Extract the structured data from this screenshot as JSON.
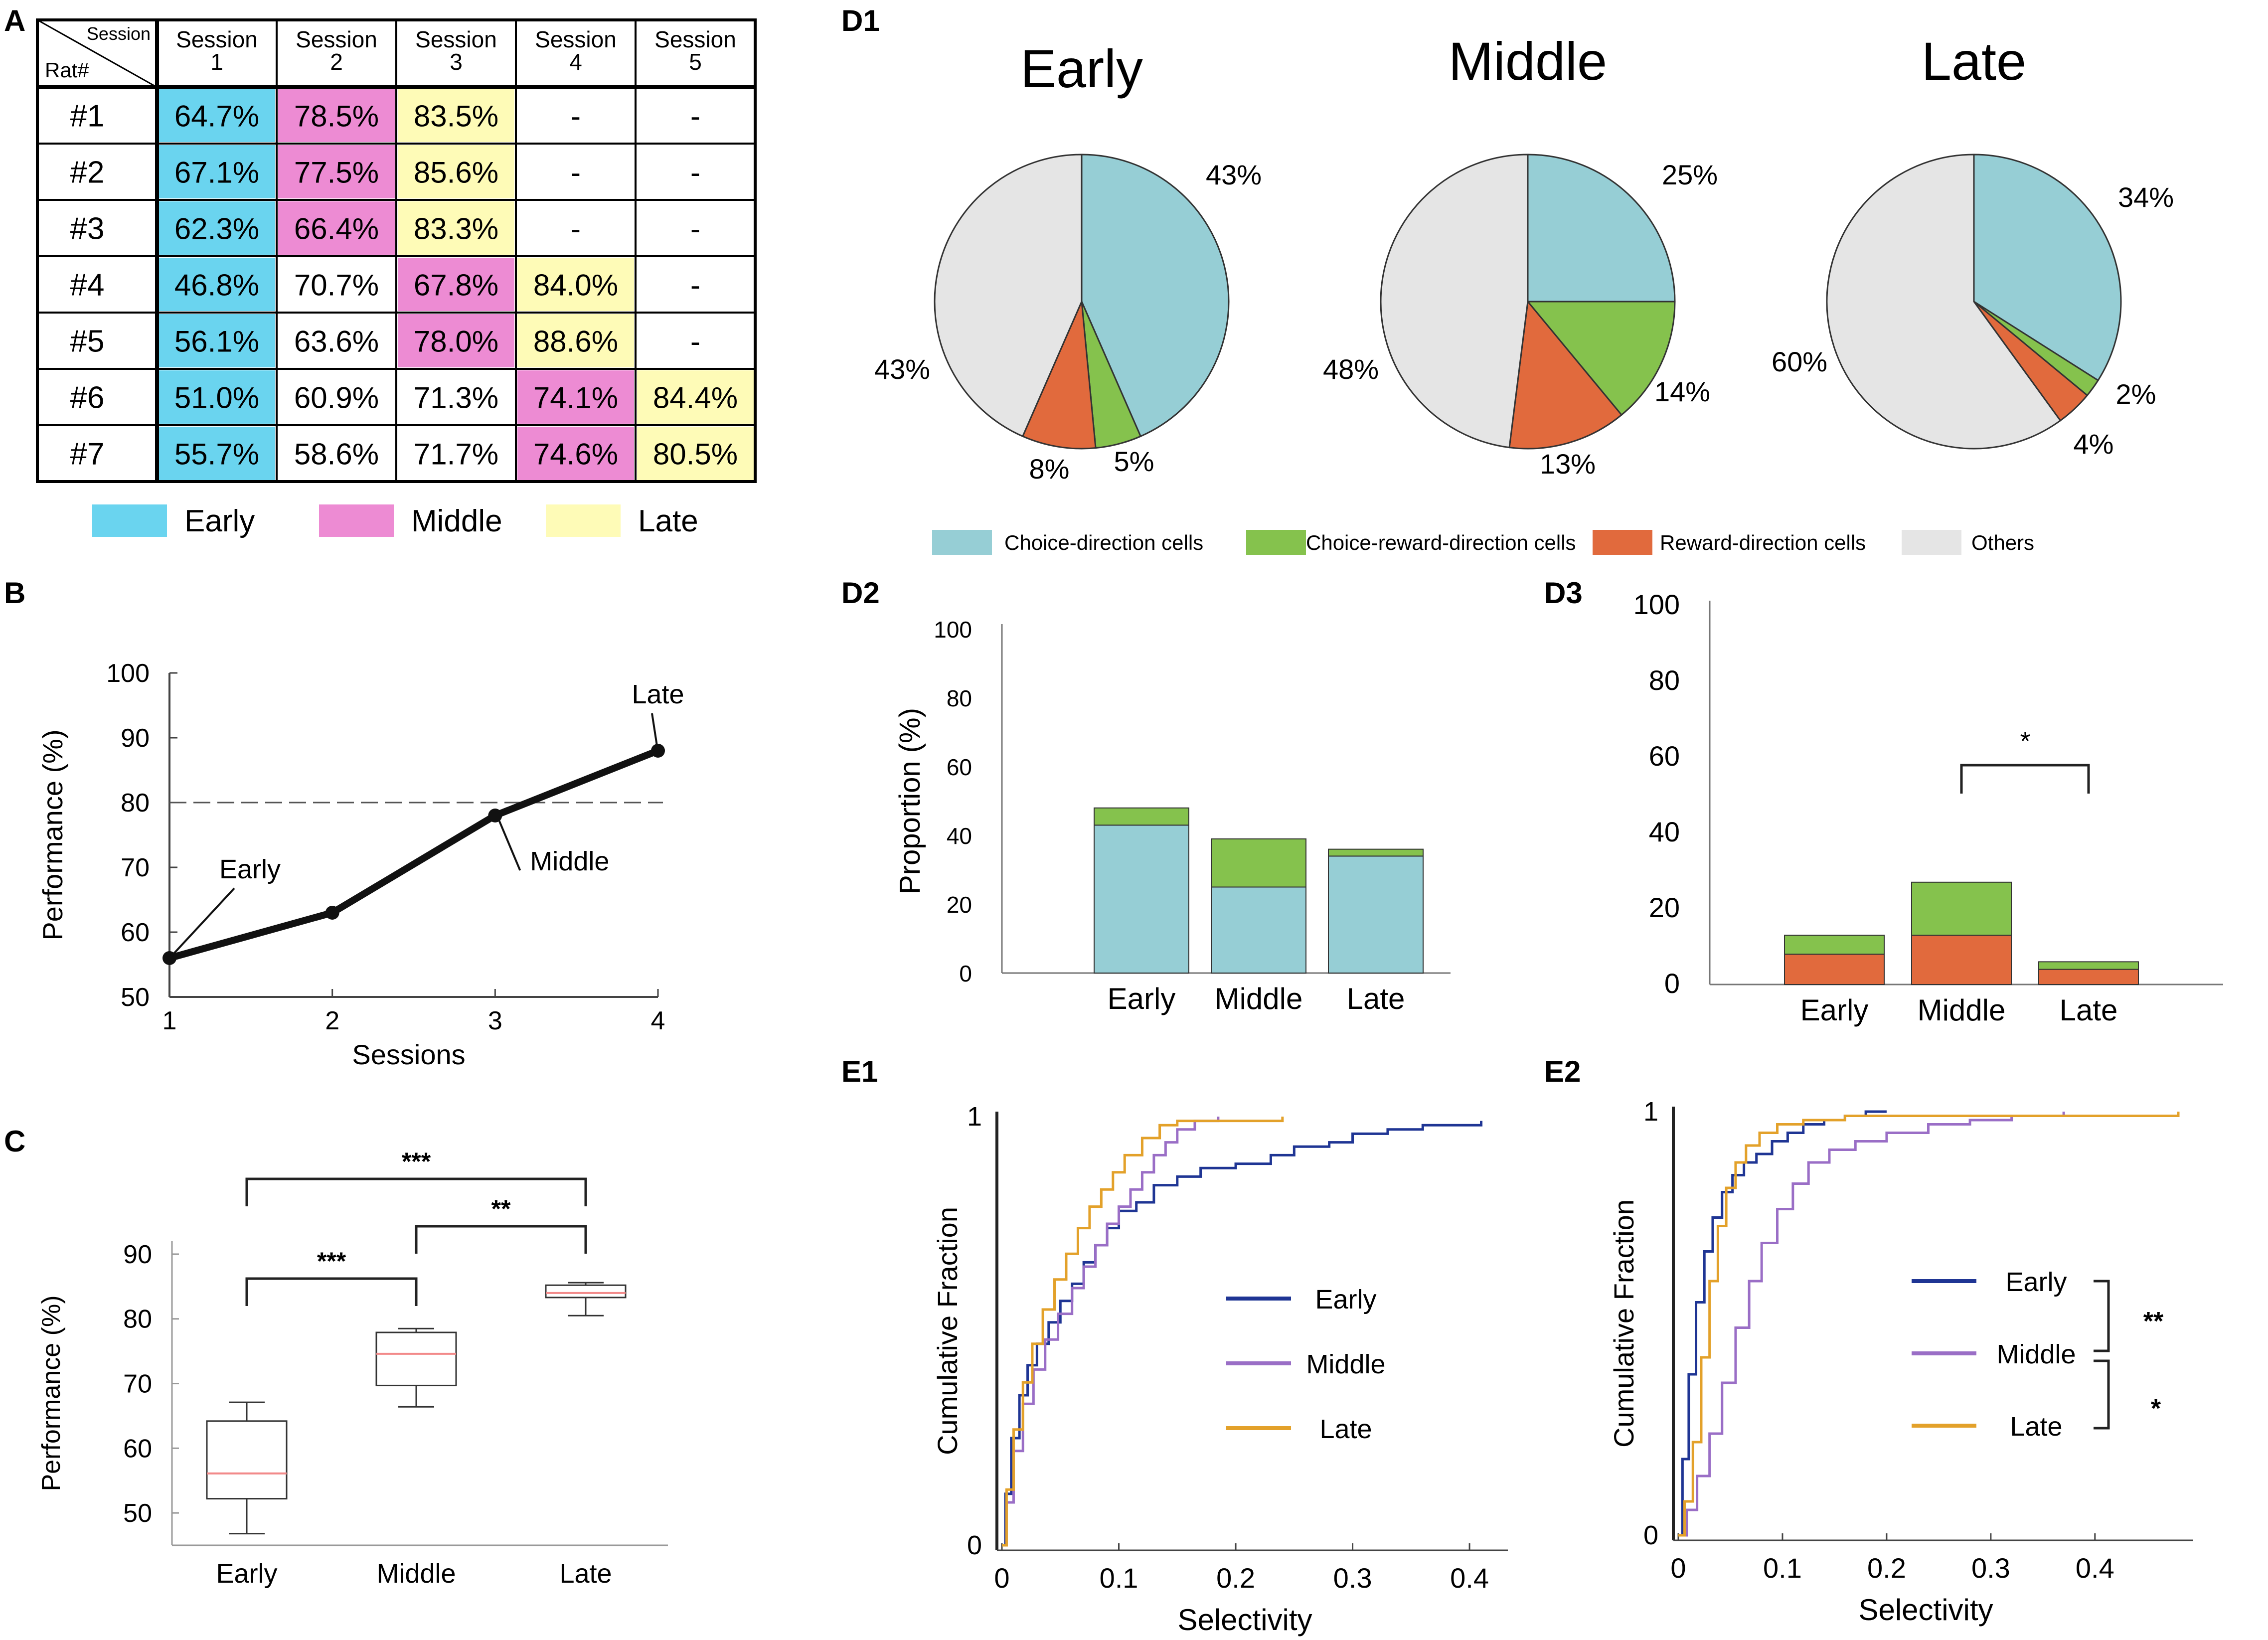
{
  "colors": {
    "early": "#6ad4ef",
    "middle": "#ed8bd3",
    "late": "#fefbb7",
    "choice": "#96ced5",
    "choice_reward": "#85c24d",
    "reward": "#e16a3d",
    "others": "#e5e5e5",
    "ecdf_early": "#1f3594",
    "ecdf_middle": "#9a6ec6",
    "ecdf_late": "#e3a12a",
    "median": "#f28a8a"
  },
  "panels": {
    "a": "A",
    "b": "B",
    "c": "C",
    "d1": "D1",
    "d2": "D2",
    "d3": "D3",
    "e1": "E1",
    "e2": "E2"
  },
  "table": {
    "corner_session": "Session",
    "corner_rat": "Rat#",
    "sessions": [
      {
        "top": "Session",
        "num": "1"
      },
      {
        "top": "Session",
        "num": "2"
      },
      {
        "top": "Session",
        "num": "3"
      },
      {
        "top": "Session",
        "num": "4"
      },
      {
        "top": "Session",
        "num": "5"
      }
    ],
    "rows": [
      {
        "rat": "#1",
        "cells": [
          {
            "v": "64.7%",
            "c": "early"
          },
          {
            "v": "78.5%",
            "c": "middle"
          },
          {
            "v": "83.5%",
            "c": "late"
          },
          {
            "v": "-",
            "c": ""
          },
          {
            "v": "-",
            "c": ""
          }
        ]
      },
      {
        "rat": "#2",
        "cells": [
          {
            "v": "67.1%",
            "c": "early"
          },
          {
            "v": "77.5%",
            "c": "middle"
          },
          {
            "v": "85.6%",
            "c": "late"
          },
          {
            "v": "-",
            "c": ""
          },
          {
            "v": "-",
            "c": ""
          }
        ]
      },
      {
        "rat": "#3",
        "cells": [
          {
            "v": "62.3%",
            "c": "early"
          },
          {
            "v": "66.4%",
            "c": "middle"
          },
          {
            "v": "83.3%",
            "c": "late"
          },
          {
            "v": "-",
            "c": ""
          },
          {
            "v": "-",
            "c": ""
          }
        ]
      },
      {
        "rat": "#4",
        "cells": [
          {
            "v": "46.8%",
            "c": "early"
          },
          {
            "v": "70.7%",
            "c": ""
          },
          {
            "v": "67.8%",
            "c": "middle"
          },
          {
            "v": "84.0%",
            "c": "late"
          },
          {
            "v": "-",
            "c": ""
          }
        ]
      },
      {
        "rat": "#5",
        "cells": [
          {
            "v": "56.1%",
            "c": "early"
          },
          {
            "v": "63.6%",
            "c": ""
          },
          {
            "v": "78.0%",
            "c": "middle"
          },
          {
            "v": "88.6%",
            "c": "late"
          },
          {
            "v": "-",
            "c": ""
          }
        ]
      },
      {
        "rat": "#6",
        "cells": [
          {
            "v": "51.0%",
            "c": "early"
          },
          {
            "v": "60.9%",
            "c": ""
          },
          {
            "v": "71.3%",
            "c": ""
          },
          {
            "v": "74.1%",
            "c": "middle"
          },
          {
            "v": "84.4%",
            "c": "late"
          }
        ]
      },
      {
        "rat": "#7",
        "cells": [
          {
            "v": "55.7%",
            "c": "early"
          },
          {
            "v": "58.6%",
            "c": ""
          },
          {
            "v": "71.7%",
            "c": ""
          },
          {
            "v": "74.6%",
            "c": "middle"
          },
          {
            "v": "80.5%",
            "c": "late"
          }
        ]
      }
    ],
    "legend": [
      {
        "label": "Early",
        "c": "early"
      },
      {
        "label": "Middle",
        "c": "middle"
      },
      {
        "label": "Late",
        "c": "late"
      }
    ]
  },
  "pie_legend": [
    {
      "label": "Choice-direction cells",
      "c": "choice"
    },
    {
      "label": "Choice-reward-direction cells",
      "c": "choice_reward"
    },
    {
      "label": "Reward-direction cells",
      "c": "reward"
    },
    {
      "label": "Others",
      "c": "others"
    }
  ],
  "chart_data": [
    {
      "id": "B",
      "type": "line",
      "x": [
        1,
        2,
        3,
        4
      ],
      "y": [
        56,
        63,
        78,
        88
      ],
      "xlabel": "Sessions",
      "ylabel": "Performance (%)",
      "xlim": [
        1,
        4
      ],
      "ylim": [
        50,
        100
      ],
      "xticks": [
        1,
        2,
        3,
        4
      ],
      "yticks": [
        50,
        60,
        70,
        80,
        90,
        100
      ],
      "reference_line": 80,
      "annotations": [
        {
          "text": "Early",
          "x": 1,
          "y": 56
        },
        {
          "text": "Middle",
          "x": 3,
          "y": 78
        },
        {
          "text": "Late",
          "x": 4,
          "y": 88
        }
      ]
    },
    {
      "id": "C",
      "type": "box",
      "categories": [
        "Early",
        "Middle",
        "Late"
      ],
      "boxes": [
        {
          "min": 46.8,
          "q1": 52.2,
          "median": 56.1,
          "q3": 64.2,
          "max": 67.1
        },
        {
          "min": 66.4,
          "q1": 69.7,
          "median": 74.6,
          "q3": 77.9,
          "max": 78.5
        },
        {
          "min": 80.5,
          "q1": 83.3,
          "median": 84.0,
          "q3": 85.2,
          "max": 85.6
        }
      ],
      "ylabel": "Performance (%)",
      "ylim": [
        45,
        92
      ],
      "yticks": [
        50,
        60,
        70,
        80,
        90
      ],
      "significance": [
        {
          "from": "Early",
          "to": "Middle",
          "label": "***"
        },
        {
          "from": "Middle",
          "to": "Late",
          "label": "**"
        },
        {
          "from": "Early",
          "to": "Late",
          "label": "***"
        }
      ]
    },
    {
      "id": "D1",
      "type": "pie",
      "pies": [
        {
          "title": "Early",
          "slices": [
            {
              "series": "choice",
              "value": 43,
              "label": "43%"
            },
            {
              "series": "choice_reward",
              "value": 5,
              "label": "5%"
            },
            {
              "series": "reward",
              "value": 8,
              "label": "8%"
            },
            {
              "series": "others",
              "value": 43,
              "label": "43%"
            }
          ]
        },
        {
          "title": "Middle",
          "slices": [
            {
              "series": "choice",
              "value": 25,
              "label": "25%"
            },
            {
              "series": "choice_reward",
              "value": 14,
              "label": "14%"
            },
            {
              "series": "reward",
              "value": 13,
              "label": "13%"
            },
            {
              "series": "others",
              "value": 48,
              "label": "48%"
            }
          ]
        },
        {
          "title": "Late",
          "slices": [
            {
              "series": "choice",
              "value": 34,
              "label": "34%"
            },
            {
              "series": "choice_reward",
              "value": 2,
              "label": "2%"
            },
            {
              "series": "reward",
              "value": 4,
              "label": "4%"
            },
            {
              "series": "others",
              "value": 60,
              "label": "60%"
            }
          ]
        }
      ]
    },
    {
      "id": "D2",
      "type": "bar",
      "stacked": true,
      "categories": [
        "Early",
        "Middle",
        "Late"
      ],
      "series": [
        {
          "name": "Choice-direction cells",
          "c": "choice",
          "values": [
            43,
            25,
            34
          ]
        },
        {
          "name": "Choice-reward-direction cells",
          "c": "choice_reward",
          "values": [
            5,
            14,
            2
          ]
        }
      ],
      "ylabel": "Proportion (%)",
      "ylim": [
        0,
        100
      ],
      "yticks": [
        0,
        20,
        40,
        60,
        80,
        100
      ]
    },
    {
      "id": "D3",
      "type": "bar",
      "stacked": true,
      "categories": [
        "Early",
        "Middle",
        "Late"
      ],
      "series": [
        {
          "name": "Reward-direction cells",
          "c": "reward",
          "values": [
            8,
            13,
            4
          ]
        },
        {
          "name": "Choice-reward-direction cells",
          "c": "choice_reward",
          "values": [
            5,
            14,
            2
          ]
        }
      ],
      "ylabel": "",
      "ylim": [
        0,
        100
      ],
      "yticks": [
        0,
        20,
        40,
        60,
        80,
        100
      ],
      "significance": [
        {
          "from": "Middle",
          "to": "Late",
          "label": "*"
        }
      ]
    },
    {
      "id": "E1",
      "type": "line",
      "xlabel": "Selectivity",
      "ylabel": "Cumulative Fraction",
      "xlim": [
        0,
        0.42
      ],
      "ylim": [
        0,
        1
      ],
      "xticks": [
        0,
        0.1,
        0.2,
        0.3,
        0.4
      ],
      "xtick_labels": [
        "0",
        "0.1",
        "0.2",
        "0.3",
        "0.4"
      ],
      "ytick_labels": [
        "0",
        "1"
      ],
      "series": [
        {
          "name": "Early",
          "c": "ecdf_early",
          "x": [
            0,
            0.003,
            0.008,
            0.015,
            0.022,
            0.03,
            0.04,
            0.05,
            0.06,
            0.07,
            0.08,
            0.09,
            0.1,
            0.115,
            0.13,
            0.15,
            0.17,
            0.2,
            0.23,
            0.25,
            0.28,
            0.3,
            0.33,
            0.36,
            0.39,
            0.41
          ],
          "y": [
            0,
            0.12,
            0.25,
            0.35,
            0.42,
            0.47,
            0.52,
            0.57,
            0.61,
            0.66,
            0.7,
            0.74,
            0.78,
            0.8,
            0.84,
            0.86,
            0.88,
            0.89,
            0.91,
            0.93,
            0.94,
            0.96,
            0.97,
            0.98,
            0.98,
            0.99
          ]
        },
        {
          "name": "Middle",
          "c": "ecdf_middle",
          "x": [
            0,
            0.004,
            0.01,
            0.018,
            0.027,
            0.037,
            0.048,
            0.06,
            0.07,
            0.08,
            0.09,
            0.1,
            0.11,
            0.12,
            0.13,
            0.14,
            0.15,
            0.165,
            0.185
          ],
          "y": [
            0,
            0.1,
            0.22,
            0.33,
            0.41,
            0.48,
            0.54,
            0.6,
            0.65,
            0.7,
            0.75,
            0.79,
            0.83,
            0.87,
            0.91,
            0.94,
            0.97,
            0.99,
            1.0
          ]
        },
        {
          "name": "Late",
          "c": "ecdf_late",
          "x": [
            0,
            0.004,
            0.01,
            0.018,
            0.026,
            0.035,
            0.045,
            0.055,
            0.065,
            0.075,
            0.085,
            0.095,
            0.105,
            0.12,
            0.135,
            0.15,
            0.17,
            0.2,
            0.24
          ],
          "y": [
            0,
            0.13,
            0.27,
            0.38,
            0.47,
            0.55,
            0.62,
            0.68,
            0.74,
            0.79,
            0.83,
            0.87,
            0.91,
            0.95,
            0.98,
            0.99,
            0.99,
            0.99,
            1.0
          ]
        }
      ]
    },
    {
      "id": "E2",
      "type": "line",
      "xlabel": "Selectivity",
      "ylabel": "Cumulative Fraction",
      "xlim": [
        0,
        0.48
      ],
      "ylim": [
        0,
        1
      ],
      "xticks": [
        0,
        0.1,
        0.2,
        0.3,
        0.4
      ],
      "xtick_labels": [
        "0",
        "0.1",
        "0.2",
        "0.3",
        "0.4"
      ],
      "ytick_labels": [
        "0",
        "1"
      ],
      "series": [
        {
          "name": "Early",
          "c": "ecdf_early",
          "x": [
            0,
            0.004,
            0.01,
            0.017,
            0.025,
            0.033,
            0.042,
            0.052,
            0.063,
            0.075,
            0.09,
            0.105,
            0.12,
            0.14,
            0.16,
            0.18,
            0.2
          ],
          "y": [
            0,
            0.18,
            0.38,
            0.55,
            0.67,
            0.75,
            0.81,
            0.85,
            0.88,
            0.9,
            0.93,
            0.95,
            0.97,
            0.98,
            0.99,
            1.0,
            1.0
          ]
        },
        {
          "name": "Middle",
          "c": "ecdf_middle",
          "x": [
            0,
            0.008,
            0.018,
            0.03,
            0.042,
            0.055,
            0.068,
            0.08,
            0.095,
            0.11,
            0.125,
            0.145,
            0.17,
            0.2,
            0.24,
            0.28,
            0.32,
            0.37
          ],
          "y": [
            0,
            0.06,
            0.14,
            0.24,
            0.36,
            0.49,
            0.6,
            0.69,
            0.77,
            0.83,
            0.88,
            0.91,
            0.93,
            0.95,
            0.97,
            0.98,
            0.99,
            1.0
          ]
        },
        {
          "name": "Late",
          "c": "ecdf_late",
          "x": [
            0,
            0.006,
            0.014,
            0.022,
            0.03,
            0.038,
            0.046,
            0.055,
            0.065,
            0.078,
            0.095,
            0.12,
            0.16,
            0.22,
            0.3,
            0.4,
            0.48
          ],
          "y": [
            0,
            0.08,
            0.22,
            0.42,
            0.6,
            0.73,
            0.82,
            0.88,
            0.92,
            0.95,
            0.97,
            0.98,
            0.99,
            0.99,
            0.99,
            0.99,
            1.0
          ]
        }
      ],
      "significance": [
        {
          "from": "Early",
          "to": "Middle",
          "label": "**"
        },
        {
          "from": "Middle",
          "to": "Late",
          "label": "*"
        }
      ]
    }
  ]
}
